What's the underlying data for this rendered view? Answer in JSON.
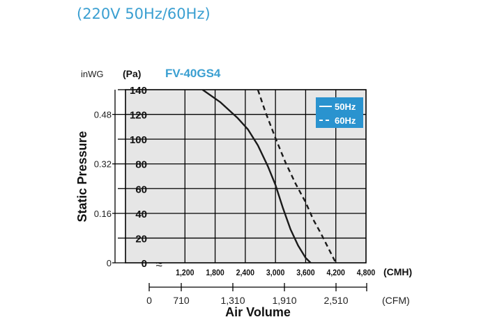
{
  "header": "(220V 50Hz/60Hz)",
  "colors": {
    "accent": "#3a9fd1",
    "legend_bg": "#2a93cf",
    "plot_bg": "#e6e6e6",
    "line": "#1a1a1a"
  },
  "chart_data": {
    "type": "line",
    "title": "FV-40GS4",
    "ylabel": "Static Pressure",
    "xlabel": "Air Volume",
    "y_unit_left": "inWG",
    "y_unit_right": "(Pa)",
    "x_unit_primary": "(CMH)",
    "x_unit_secondary": "(CFM)",
    "ylim": [
      0,
      140
    ],
    "yticks": [
      "0",
      "20",
      "40",
      "60",
      "80",
      "100",
      "120",
      "140"
    ],
    "yticks_inwg": [
      {
        "label": "0",
        "pa": 0
      },
      {
        "label": "0.16",
        "pa": 40
      },
      {
        "label": "0.32",
        "pa": 80
      },
      {
        "label": "0.48",
        "pa": 120
      }
    ],
    "xlim": [
      600,
      4800
    ],
    "xticks_cmh": [
      "1,200",
      "1,800",
      "2,400",
      "3,000",
      "3,600",
      "4,200",
      "4,800"
    ],
    "xticks_cfm": [
      "0",
      "710",
      "1,310",
      "1,910",
      "2,510"
    ],
    "axis_break_symbol": "≈",
    "grid": true,
    "legend_position": "top-right",
    "series": [
      {
        "name": "50Hz",
        "style": "solid",
        "x": [
          1550,
          1900,
          2250,
          2450,
          2650,
          2850,
          3000,
          3150,
          3300,
          3450,
          3600,
          3700
        ],
        "y": [
          140,
          130,
          117,
          108,
          95,
          78,
          63,
          44,
          27,
          14,
          4,
          0
        ]
      },
      {
        "name": "60Hz",
        "style": "dashed",
        "x": [
          2650,
          2800,
          3000,
          3200,
          3400,
          3600,
          3750,
          3900,
          4050,
          4150,
          4200
        ],
        "y": [
          140,
          122,
          101,
          81,
          64,
          49,
          35,
          24,
          12,
          4,
          0
        ]
      }
    ]
  }
}
